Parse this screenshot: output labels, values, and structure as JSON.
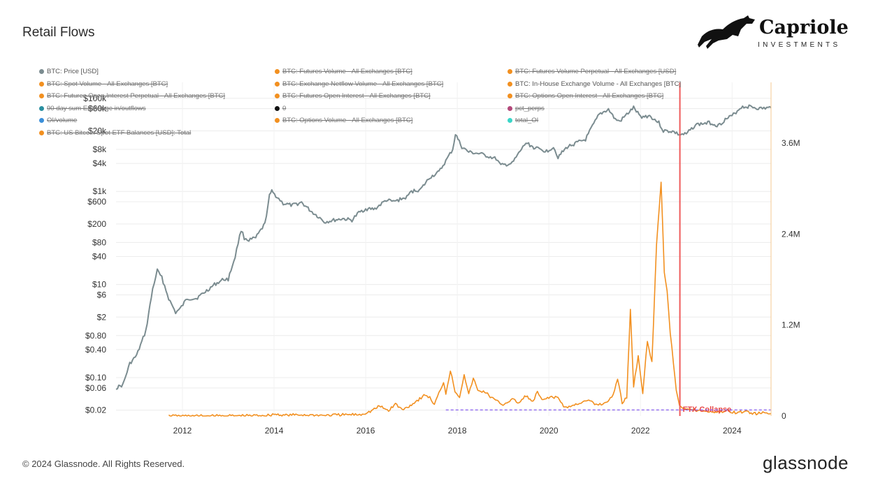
{
  "header": {
    "title": "Retail Flows"
  },
  "logo": {
    "name": "Capriole",
    "sub": "INVESTMENTS"
  },
  "footer": {
    "copyright": "© 2024 Glassnode. All Rights Reserved.",
    "brand": "glassnode"
  },
  "legend": [
    {
      "label": "BTC: Price [USD]",
      "color": "#7b8c90",
      "active": true
    },
    {
      "label": "BTC: Futures Volume - All Exchanges [BTC]",
      "color": "#f29020",
      "active": false
    },
    {
      "label": "BTC: Futures Volume Perpetual - All Exchanges [USD]",
      "color": "#f29020",
      "active": false
    },
    {
      "label": "BTC: Spot Volume - All Exchanges [BTC]",
      "color": "#f29020",
      "active": false
    },
    {
      "label": "BTC: Exchange Netflow Volume - All Exchanges [BTC]",
      "color": "#f29020",
      "active": false
    },
    {
      "label": "BTC: In-House Exchange Volume - All Exchanges [BTC]",
      "color": "#f29020",
      "active": true
    },
    {
      "label": "BTC: Futures Open Interest Perpetual - All Exchanges [BTC]",
      "color": "#f29020",
      "active": false
    },
    {
      "label": "BTC: Futures Open Interest - All Exchanges [BTC]",
      "color": "#f29020",
      "active": false
    },
    {
      "label": "BTC: Options Open Interest - All Exchanges [BTC]",
      "color": "#f29020",
      "active": false
    },
    {
      "label": "90 day sum Exchange in/outflows",
      "color": "#2a8fa0",
      "active": false
    },
    {
      "label": "0",
      "color": "#111111",
      "active": false
    },
    {
      "label": "pct_perps",
      "color": "#b3487a",
      "active": false
    },
    {
      "label": "OI/volume",
      "color": "#3b8fd9",
      "active": false
    },
    {
      "label": "BTC: Options Volume - All Exchanges [BTC]",
      "color": "#f29020",
      "active": false
    },
    {
      "label": "total_OI",
      "color": "#3ad6c8",
      "active": false
    },
    {
      "label": "BTC: US Bitcoin Spot ETF Balances [USD]: Total",
      "color": "#f29020",
      "active": false
    }
  ],
  "chart_data": {
    "type": "line",
    "title": "Retail Flows",
    "x_ticks": [
      "2012",
      "2014",
      "2016",
      "2018",
      "2020",
      "2022",
      "2024"
    ],
    "x_range": [
      2010.55,
      2024.85
    ],
    "y_left": {
      "scale": "log",
      "range": [
        0.015,
        220000
      ],
      "ticks": [
        {
          "label": "$100k",
          "value": 100000
        },
        {
          "label": "$60k",
          "value": 60000
        },
        {
          "label": "$20k",
          "value": 20000
        },
        {
          "label": "$8k",
          "value": 8000
        },
        {
          "label": "$4k",
          "value": 4000
        },
        {
          "label": "$1k",
          "value": 1000
        },
        {
          "label": "$600",
          "value": 600
        },
        {
          "label": "$200",
          "value": 200
        },
        {
          "label": "$80",
          "value": 80
        },
        {
          "label": "$40",
          "value": 40
        },
        {
          "label": "$10",
          "value": 10
        },
        {
          "label": "$6",
          "value": 6
        },
        {
          "label": "$2",
          "value": 2
        },
        {
          "label": "$0.80",
          "value": 0.8
        },
        {
          "label": "$0.40",
          "value": 0.4
        },
        {
          "label": "$0.10",
          "value": 0.1
        },
        {
          "label": "$0.06",
          "value": 0.06
        },
        {
          "label": "$0.02",
          "value": 0.02
        }
      ]
    },
    "y_right": {
      "scale": "linear",
      "range": [
        0,
        4400000
      ],
      "ticks": [
        {
          "label": "0",
          "value": 0
        },
        {
          "label": "1.2M",
          "value": 1200000
        },
        {
          "label": "2.4M",
          "value": 2400000
        },
        {
          "label": "3.6M",
          "value": 3600000
        }
      ]
    },
    "series": [
      {
        "name": "BTC: Price [USD]",
        "axis": "left",
        "color": "#7b8c90",
        "points": [
          [
            2010.55,
            0.06
          ],
          [
            2010.7,
            0.07
          ],
          [
            2010.85,
            0.2
          ],
          [
            2011.0,
            0.3
          ],
          [
            2011.2,
            1.0
          ],
          [
            2011.35,
            8
          ],
          [
            2011.45,
            20
          ],
          [
            2011.55,
            14
          ],
          [
            2011.7,
            5
          ],
          [
            2011.85,
            2.5
          ],
          [
            2011.95,
            3
          ],
          [
            2012.1,
            5
          ],
          [
            2012.3,
            5
          ],
          [
            2012.5,
            7
          ],
          [
            2012.7,
            10
          ],
          [
            2012.9,
            13
          ],
          [
            2013.0,
            13
          ],
          [
            2013.15,
            40
          ],
          [
            2013.28,
            150
          ],
          [
            2013.35,
            100
          ],
          [
            2013.45,
            90
          ],
          [
            2013.6,
            100
          ],
          [
            2013.8,
            200
          ],
          [
            2013.9,
            800
          ],
          [
            2013.95,
            1000
          ],
          [
            2014.1,
            700
          ],
          [
            2014.2,
            550
          ],
          [
            2014.4,
            500
          ],
          [
            2014.6,
            580
          ],
          [
            2014.8,
            380
          ],
          [
            2015.0,
            270
          ],
          [
            2015.1,
            220
          ],
          [
            2015.3,
            240
          ],
          [
            2015.5,
            260
          ],
          [
            2015.7,
            240
          ],
          [
            2015.85,
            350
          ],
          [
            2016.0,
            420
          ],
          [
            2016.2,
            420
          ],
          [
            2016.45,
            650
          ],
          [
            2016.6,
            600
          ],
          [
            2016.9,
            750
          ],
          [
            2017.0,
            1000
          ],
          [
            2017.2,
            1100
          ],
          [
            2017.4,
            2000
          ],
          [
            2017.6,
            2600
          ],
          [
            2017.75,
            4500
          ],
          [
            2017.9,
            8000
          ],
          [
            2017.96,
            17000
          ],
          [
            2018.1,
            9000
          ],
          [
            2018.25,
            7000
          ],
          [
            2018.5,
            6400
          ],
          [
            2018.85,
            5000
          ],
          [
            2018.95,
            3600
          ],
          [
            2019.2,
            4000
          ],
          [
            2019.4,
            8000
          ],
          [
            2019.5,
            11000
          ],
          [
            2019.7,
            8500
          ],
          [
            2019.95,
            7300
          ],
          [
            2020.1,
            9000
          ],
          [
            2020.2,
            5500
          ],
          [
            2020.4,
            9000
          ],
          [
            2020.6,
            11000
          ],
          [
            2020.8,
            13000
          ],
          [
            2020.95,
            25000
          ],
          [
            2021.1,
            45000
          ],
          [
            2021.3,
            58000
          ],
          [
            2021.45,
            35000
          ],
          [
            2021.55,
            32000
          ],
          [
            2021.7,
            45000
          ],
          [
            2021.85,
            63000
          ],
          [
            2022.0,
            40000
          ],
          [
            2022.2,
            42000
          ],
          [
            2022.4,
            30000
          ],
          [
            2022.5,
            20000
          ],
          [
            2022.7,
            19500
          ],
          [
            2022.85,
            16500
          ],
          [
            2023.0,
            17000
          ],
          [
            2023.2,
            27000
          ],
          [
            2023.5,
            30000
          ],
          [
            2023.7,
            26000
          ],
          [
            2023.85,
            35000
          ],
          [
            2024.0,
            42000
          ],
          [
            2024.2,
            65000
          ],
          [
            2024.4,
            67000
          ],
          [
            2024.6,
            60000
          ],
          [
            2024.85,
            63000
          ]
        ]
      },
      {
        "name": "BTC: In-House Exchange Volume - All Exchanges [BTC]",
        "axis": "right",
        "color": "#f29020",
        "points": [
          [
            2011.7,
            0
          ],
          [
            2012.5,
            0
          ],
          [
            2013.0,
            1000
          ],
          [
            2013.5,
            5000
          ],
          [
            2013.9,
            10000
          ],
          [
            2014.0,
            25000
          ],
          [
            2014.2,
            10000
          ],
          [
            2014.6,
            15000
          ],
          [
            2015.0,
            8000
          ],
          [
            2015.5,
            15000
          ],
          [
            2015.9,
            20000
          ],
          [
            2016.1,
            60000
          ],
          [
            2016.3,
            130000
          ],
          [
            2016.5,
            70000
          ],
          [
            2016.65,
            160000
          ],
          [
            2016.8,
            80000
          ],
          [
            2017.0,
            150000
          ],
          [
            2017.3,
            280000
          ],
          [
            2017.4,
            240000
          ],
          [
            2017.5,
            150000
          ],
          [
            2017.6,
            300000
          ],
          [
            2017.7,
            450000
          ],
          [
            2017.75,
            300000
          ],
          [
            2017.85,
            600000
          ],
          [
            2017.95,
            330000
          ],
          [
            2018.05,
            250000
          ],
          [
            2018.15,
            550000
          ],
          [
            2018.25,
            280000
          ],
          [
            2018.35,
            500000
          ],
          [
            2018.45,
            330000
          ],
          [
            2018.6,
            320000
          ],
          [
            2018.75,
            240000
          ],
          [
            2018.9,
            180000
          ],
          [
            2019.0,
            150000
          ],
          [
            2019.2,
            220000
          ],
          [
            2019.35,
            170000
          ],
          [
            2019.5,
            270000
          ],
          [
            2019.65,
            180000
          ],
          [
            2019.75,
            320000
          ],
          [
            2019.85,
            200000
          ],
          [
            2020.0,
            250000
          ],
          [
            2020.2,
            240000
          ],
          [
            2020.35,
            110000
          ],
          [
            2020.5,
            130000
          ],
          [
            2020.7,
            180000
          ],
          [
            2020.9,
            200000
          ],
          [
            2021.0,
            150000
          ],
          [
            2021.2,
            160000
          ],
          [
            2021.4,
            260000
          ],
          [
            2021.5,
            500000
          ],
          [
            2021.6,
            170000
          ],
          [
            2021.7,
            250000
          ],
          [
            2021.78,
            1420000
          ],
          [
            2021.85,
            380000
          ],
          [
            2021.95,
            800000
          ],
          [
            2022.05,
            300000
          ],
          [
            2022.15,
            1000000
          ],
          [
            2022.25,
            700000
          ],
          [
            2022.35,
            2250000
          ],
          [
            2022.45,
            3100000
          ],
          [
            2022.52,
            1900000
          ],
          [
            2022.58,
            1650000
          ],
          [
            2022.65,
            1100000
          ],
          [
            2022.72,
            700000
          ],
          [
            2022.78,
            350000
          ],
          [
            2022.85,
            150000
          ],
          [
            2022.95,
            100000
          ],
          [
            2023.1,
            80000
          ],
          [
            2023.3,
            70000
          ],
          [
            2023.5,
            60000
          ],
          [
            2023.7,
            50000
          ],
          [
            2023.9,
            70000
          ],
          [
            2024.1,
            40000
          ],
          [
            2024.3,
            60000
          ],
          [
            2024.5,
            30000
          ],
          [
            2024.7,
            40000
          ],
          [
            2024.85,
            30000
          ]
        ]
      }
    ],
    "annotations": [
      {
        "label": "FTX Collapse",
        "x": 2022.86,
        "type": "vline",
        "color": "#ef5a5a"
      },
      {
        "label": "",
        "y_right": 80000,
        "x_from": 2017.75,
        "x_to": 2024.85,
        "type": "hline-dashed",
        "color": "#7b4ff0"
      }
    ]
  }
}
